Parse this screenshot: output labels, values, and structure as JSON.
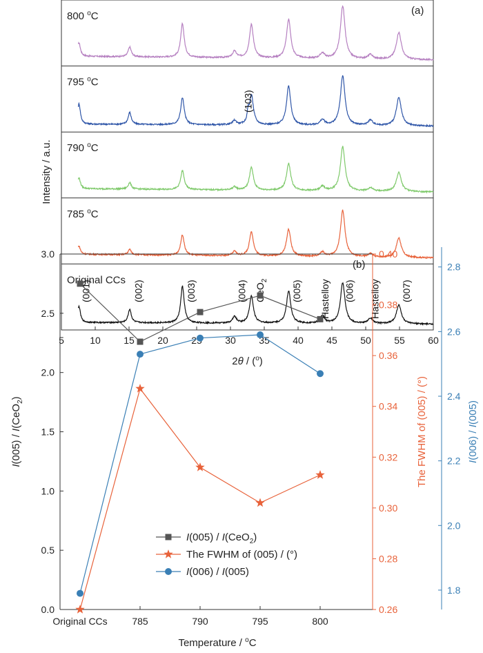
{
  "chart_data": [
    {
      "type": "line",
      "panel_label": "(a)",
      "xlabel": "2θ / (°)",
      "xlabel_parts": {
        "pre": "2",
        "var": "θ",
        "post": " / (",
        "unit": "o",
        "close": ")"
      },
      "ylabel": "Intensity / a.u.",
      "xlim": [
        5,
        60
      ],
      "xticks": [
        "5",
        "10",
        "15",
        "20",
        "25",
        "30",
        "35",
        "40",
        "45",
        "50",
        "55",
        "60"
      ],
      "peaks": [
        7.6,
        15.1,
        22.9,
        30.6,
        33.1,
        38.6,
        43.6,
        46.6,
        50.7,
        54.9
      ],
      "series": [
        {
          "name": "800 °C",
          "temp": "800",
          "unit_sup": "o",
          "unit": "C",
          "color": "#b57fc0",
          "heights": [
            0.25,
            0.18,
            0.62,
            0.12,
            0.62,
            0.72,
            0.1,
            0.98,
            0.08,
            0.5
          ],
          "baseline": 0.22
        },
        {
          "name": "795 °C",
          "temp": "795",
          "unit_sup": "o",
          "unit": "C",
          "color": "#2f56a8",
          "heights": [
            0.38,
            0.22,
            0.5,
            0.08,
            0.55,
            0.72,
            0.1,
            0.92,
            0.1,
            0.52
          ],
          "baseline": 0.12
        },
        {
          "name": "790 °C",
          "temp": "790",
          "unit_sup": "o",
          "unit": "C",
          "color": "#7ec96a",
          "heights": [
            0.2,
            0.12,
            0.35,
            0.06,
            0.42,
            0.5,
            0.08,
            0.82,
            0.06,
            0.35
          ],
          "baseline": 0.2
        },
        {
          "name": "785 °C",
          "temp": "785",
          "unit_sup": "o",
          "unit": "C",
          "color": "#e8623a",
          "heights": [
            0.15,
            0.1,
            0.38,
            0.08,
            0.45,
            0.5,
            0.08,
            0.86,
            0.06,
            0.36
          ],
          "baseline": 0.22
        },
        {
          "name": "Original CCs",
          "color": "#111111",
          "heights": [
            0.3,
            0.25,
            0.68,
            0.12,
            0.5,
            0.6,
            0.14,
            0.75,
            0.1,
            0.35
          ],
          "baseline": 0.1
        }
      ],
      "annotations": [
        {
          "text": "(103)",
          "x": 32.6
        },
        {
          "text": "(001)",
          "x": 8.6
        },
        {
          "text": "(002)",
          "x": 16.4
        },
        {
          "text": "(003)",
          "x": 24.2
        },
        {
          "text": "(004)",
          "x": 31.7
        },
        {
          "text": "CeO",
          "sub": "2",
          "x": 34.4
        },
        {
          "text": "(005)",
          "x": 39.8
        },
        {
          "text": "Hastelloy",
          "x": 44.0
        },
        {
          "text": "(006)",
          "x": 47.6
        },
        {
          "text": "Hastelloy",
          "x": 51.4
        },
        {
          "text": "(007)",
          "x": 56.0
        }
      ]
    },
    {
      "type": "line",
      "panel_label": "(b)",
      "xlabel": "Temperature / °C",
      "xlabel_parts": {
        "text": "Temperature / ",
        "sup": "o",
        "unit": "C"
      },
      "categories": [
        "Original CCs",
        "785",
        "790",
        "795",
        "800"
      ],
      "left_axis": {
        "ylim": [
          0,
          3.0
        ],
        "ticks": [
          "0.0",
          "0.5",
          "1.0",
          "1.5",
          "2.0",
          "2.5",
          "3.0"
        ],
        "label_parts": {
          "i1": "I",
          "t1": "(005) / ",
          "i2": "I",
          "t2": "(CeO",
          "sub": "2",
          "t3": ")"
        }
      },
      "mid_axis": {
        "ylim": [
          0.26,
          0.4
        ],
        "ticks": [
          "0.26",
          "0.28",
          "0.30",
          "0.32",
          "0.34",
          "0.36",
          "0.38",
          "0.40"
        ],
        "label": "The FWHM of (005) / (°)",
        "color": "#e8623a"
      },
      "right_axis": {
        "ylim": [
          1.74,
          2.84
        ],
        "ticks": [
          "1.8",
          "2.0",
          "2.2",
          "2.4",
          "2.6",
          "2.8"
        ],
        "label_parts": {
          "i1": "I",
          "t1": "(006) / ",
          "i2": "I",
          "t2": "(005)"
        },
        "color": "#3a7fb5"
      },
      "series": [
        {
          "name": "I(005) / I(CeO2)",
          "legend_parts": {
            "i1": "I",
            "t1": "(005) / ",
            "i2": "I",
            "t2": "(CeO",
            "sub": "2",
            "t3": ")"
          },
          "axis": "left",
          "marker": "square",
          "color": "#555555",
          "values": [
            2.75,
            2.26,
            2.51,
            2.65,
            2.45
          ]
        },
        {
          "name": "The FWHM of (005) / (°)",
          "legend_parts": {
            "t1": "The FWHM of (005) / (°)"
          },
          "axis": "mid",
          "marker": "star",
          "color": "#e8623a",
          "values": [
            0.26,
            0.347,
            0.316,
            0.302,
            0.313
          ]
        },
        {
          "name": "I(006) / I(005)",
          "legend_parts": {
            "i1": "I",
            "t1": "(006) / ",
            "i2": "I",
            "t2": "(005)"
          },
          "axis": "right",
          "marker": "circle",
          "color": "#3a7fb5",
          "values": [
            1.79,
            2.53,
            2.58,
            2.59,
            2.47
          ]
        }
      ]
    }
  ]
}
